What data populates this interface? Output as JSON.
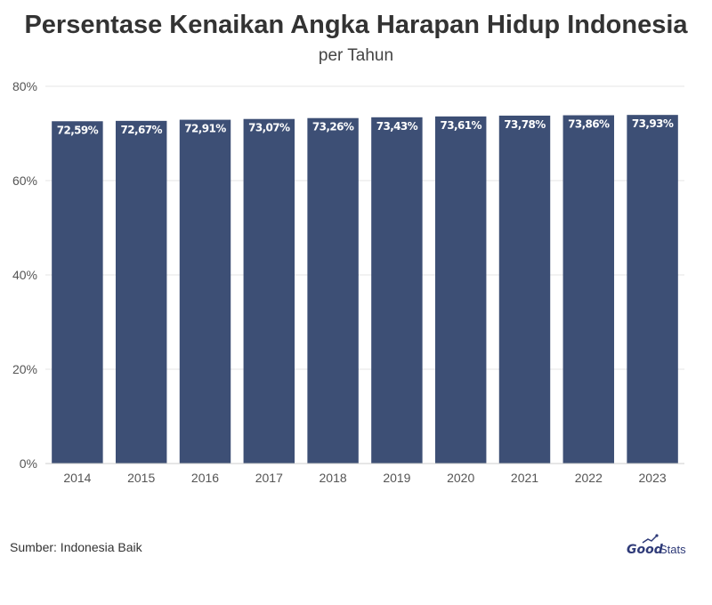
{
  "header": {
    "title": "Persentase Kenaikan Angka Harapan Hidup Indonesia",
    "subtitle": "per Tahun"
  },
  "footer": {
    "source": "Sumber: Indonesia Baik",
    "logo_good": "Good",
    "logo_stats": "Stats"
  },
  "colors": {
    "bar": "#3d4f75",
    "grid": "#e6e6e6",
    "axis_text": "#555555",
    "label_text": "#ffffff",
    "brand": "#2e3a78"
  },
  "chart_data": {
    "type": "bar",
    "categories": [
      "2014",
      "2015",
      "2016",
      "2017",
      "2018",
      "2019",
      "2020",
      "2021",
      "2022",
      "2023"
    ],
    "values": [
      72.59,
      72.67,
      72.91,
      73.07,
      73.26,
      73.43,
      73.61,
      73.78,
      73.86,
      73.93
    ],
    "data_labels": [
      "72,59%",
      "72,67%",
      "72,91%",
      "73,07%",
      "73,26%",
      "73,43%",
      "73,61%",
      "73,78%",
      "73,86%",
      "73,93%"
    ],
    "title": "Persentase Kenaikan Angka Harapan Hidup Indonesia",
    "subtitle": "per Tahun",
    "xlabel": "",
    "ylabel": "",
    "ylim": [
      0,
      80
    ],
    "yticks": [
      0,
      20,
      40,
      60,
      80
    ],
    "ytick_labels": [
      "0%",
      "20%",
      "40%",
      "60%",
      "80%"
    ],
    "grid": true,
    "legend": "none"
  }
}
